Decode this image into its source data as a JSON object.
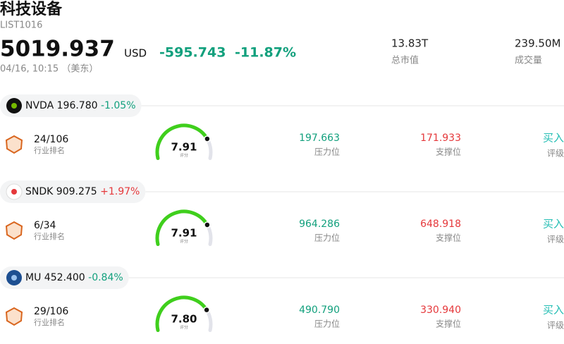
{
  "header": {
    "title": "科技设备",
    "list_id": "LIST1016",
    "price": "5019.937",
    "currency": "USD",
    "change": "-595.743",
    "change_pct": "-11.87%",
    "time": "04/16, 10:15 （美东）",
    "market_cap": {
      "value": "13.83T",
      "label": "总市值"
    },
    "volume": {
      "value": "239.50M",
      "label": "成交量"
    }
  },
  "stocks": [
    {
      "symbol": "NVDA",
      "price": "196.780",
      "change_pct": "-1.05%",
      "rank": "24/106",
      "rank_label": "行业排名",
      "score": "7.91",
      "score_label": "评分",
      "resistance": "197.663",
      "resistance_label": "压力位",
      "support": "171.933",
      "support_label": "支撑位",
      "rating": "买入",
      "rating_label": "评级"
    },
    {
      "symbol": "SNDK",
      "price": "909.275",
      "change_pct": "+1.97%",
      "rank": "6/34",
      "rank_label": "行业排名",
      "score": "7.91",
      "score_label": "评分",
      "resistance": "964.286",
      "resistance_label": "压力位",
      "support": "648.918",
      "support_label": "支撑位",
      "rating": "买入",
      "rating_label": "评级"
    },
    {
      "symbol": "MU",
      "price": "452.400",
      "change_pct": "-0.84%",
      "rank": "29/106",
      "rank_label": "行业排名",
      "score": "7.80",
      "score_label": "评分",
      "resistance": "490.790",
      "resistance_label": "压力位",
      "support": "330.940",
      "support_label": "支撑位",
      "rating": "买入",
      "rating_label": "评级"
    }
  ]
}
